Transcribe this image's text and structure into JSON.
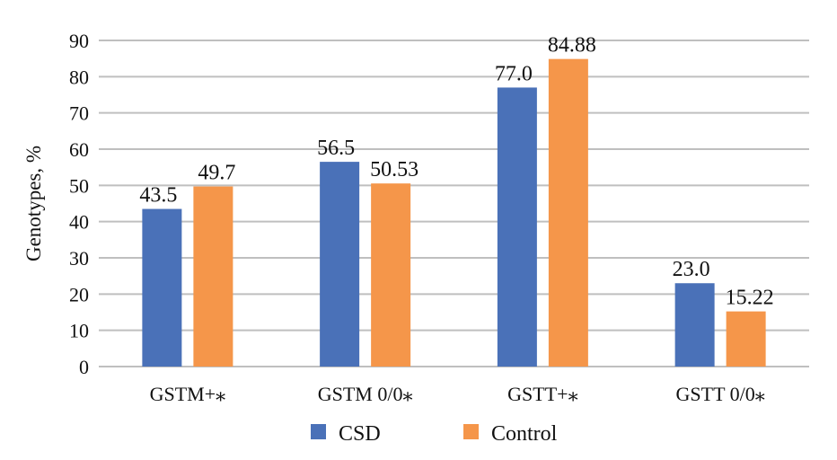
{
  "chart_data": {
    "type": "bar",
    "title": "",
    "xlabel": "",
    "ylabel": "Genotypes, %",
    "ylim": [
      0,
      90
    ],
    "yticks": [
      0,
      10,
      20,
      30,
      40,
      50,
      60,
      70,
      80,
      90
    ],
    "grid": true,
    "legend_position": "bottom",
    "categories": [
      "GSTM+*",
      "GSTM 0/0*",
      "GSTT+*",
      "GSTT 0/0*"
    ],
    "series": [
      {
        "name": "CSD",
        "color": "#4a71b8",
        "values": [
          43.5,
          56.5,
          77.0,
          23.0
        ],
        "labels": [
          "43.5",
          "56.5",
          "77.0",
          "23.0"
        ]
      },
      {
        "name": "Control",
        "color": "#f5964a",
        "values": [
          49.7,
          50.53,
          84.88,
          15.22
        ],
        "labels": [
          "49.7",
          "50.53",
          "84.88",
          "15.22"
        ]
      }
    ]
  }
}
